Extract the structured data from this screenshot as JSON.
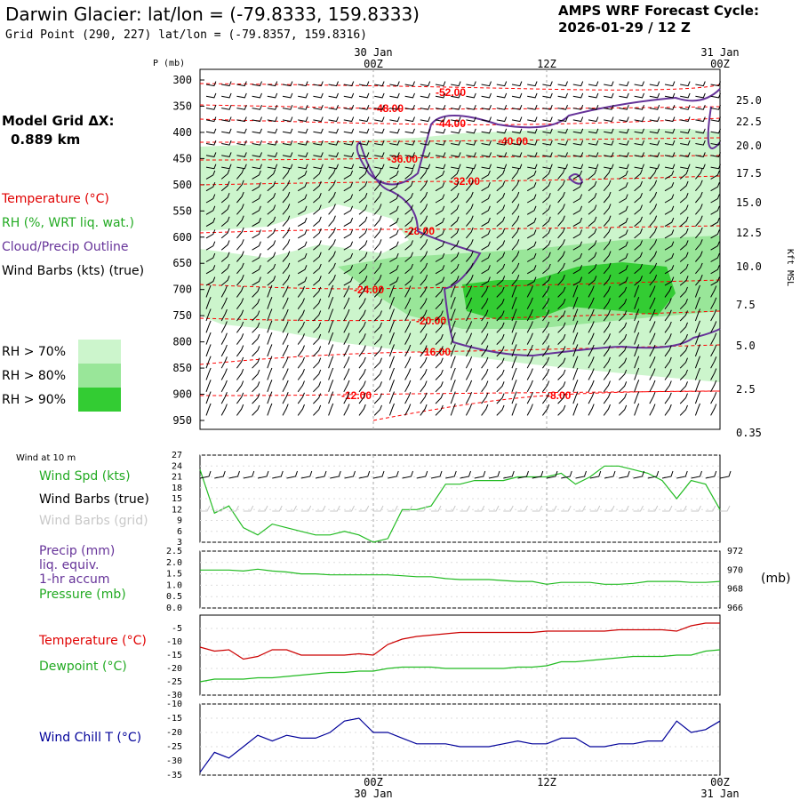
{
  "header": {
    "title": "Darwin Glacier:  lat/lon = (-79.8333, 159.8333)",
    "subtitle": "Grid Point (290, 227) lat/lon = (-79.8357, 159.8316)",
    "cycle_line1": "AMPS WRF Forecast Cycle:",
    "cycle_line2": "2026-01-29 / 12  Z"
  },
  "left_panel": {
    "model_grid_line1": "Model Grid ΔX:",
    "model_grid_line2": "0.889 km",
    "temperature_label": "Temperature (°C)",
    "rh_label": "RH (%, WRT liq. wat.)",
    "cloud_label": "Cloud/Precip Outline",
    "wind_label": "Wind Barbs (kts) (true)",
    "rh_legend": [
      "RH > 70%",
      "RH > 80%",
      "RH > 90%"
    ]
  },
  "colors": {
    "temperature": "#ff0000",
    "rh70": "#ccf5cc",
    "rh80": "#99e699",
    "rh90": "#33cc33",
    "cloud_outline": "#663399",
    "green_series": "#22bb22",
    "grid_gray": "#aaaaaa",
    "windchill": "#000099"
  },
  "chart_data": [
    {
      "type": "heatmap",
      "name": "vertical cross-section",
      "y_title": "P (mb)",
      "right_axis_title": "Kft MSL",
      "x_tick_labels": [
        "00Z",
        "12Z",
        "00Z"
      ],
      "x_date_labels": [
        "30 Jan",
        "",
        "31 Jan"
      ],
      "pressure_levels": [
        300,
        350,
        400,
        450,
        500,
        550,
        600,
        650,
        700,
        750,
        800,
        850,
        900,
        950
      ],
      "height_kft": [
        "25.0",
        "22.5",
        "20.0",
        "17.5",
        "15.0",
        "12.5",
        "10.0",
        "7.5",
        "5.0",
        "2.5",
        "0.35"
      ],
      "temperature_contour_labels": [
        "-52.00",
        "-48.00",
        "-44.00",
        "-40.00",
        "-36.00",
        "-32.00",
        "-28.00",
        "-24.00",
        "-20.00",
        "-16.00",
        "-12.00",
        "-8.00"
      ]
    },
    {
      "type": "line",
      "name": "10 m wind",
      "panel_title": "Wind at 10 m",
      "labels": [
        "Wind Spd (kts)",
        "Wind Barbs (true)",
        "Wind Barbs (grid)"
      ],
      "ylim": [
        3,
        27
      ],
      "yticks": [
        3,
        6,
        9,
        12,
        15,
        18,
        21,
        24,
        27
      ],
      "x": [
        -12,
        -11,
        -10,
        -9,
        -8,
        -7,
        -6,
        -5,
        -4,
        -3,
        -2,
        -1,
        0,
        1,
        2,
        3,
        4,
        5,
        6,
        7,
        8,
        9,
        10,
        11,
        12,
        13,
        14,
        15,
        16,
        17,
        18,
        19,
        20,
        21,
        22,
        23,
        24
      ],
      "values": [
        23,
        11,
        13,
        7,
        5,
        8,
        7,
        6,
        5,
        5,
        6,
        5,
        3,
        4,
        12,
        12,
        13,
        19,
        19,
        20,
        20,
        20,
        21,
        21,
        21,
        22,
        19,
        21,
        24,
        24,
        23,
        22,
        20,
        15,
        20,
        19,
        12
      ]
    },
    {
      "type": "line",
      "name": "precip and pressure",
      "labels": [
        "Precip (mm)",
        "liq. equiv.",
        "1-hr accum",
        "Pressure (mb)"
      ],
      "left_ylim": [
        0.0,
        2.5
      ],
      "left_yticks": [
        "0.0",
        "0.5",
        "1.0",
        "1.5",
        "2.0",
        "2.5"
      ],
      "right_ylim": [
        966,
        972
      ],
      "right_yticks": [
        966,
        968,
        970,
        972
      ],
      "right_unit": "(mb)",
      "x": [
        -12,
        -11,
        -10,
        -9,
        -8,
        -7,
        -6,
        -5,
        -4,
        -3,
        -2,
        -1,
        0,
        1,
        2,
        3,
        4,
        5,
        6,
        7,
        8,
        9,
        10,
        11,
        12,
        13,
        14,
        15,
        16,
        17,
        18,
        19,
        20,
        21,
        22,
        23,
        24
      ],
      "pressure": [
        970.0,
        970.0,
        970.0,
        969.9,
        970.1,
        969.9,
        969.8,
        969.6,
        969.6,
        969.5,
        969.5,
        969.5,
        969.5,
        969.5,
        969.4,
        969.3,
        969.3,
        969.1,
        969.0,
        969.0,
        969.0,
        968.9,
        968.8,
        968.8,
        968.5,
        968.7,
        968.7,
        968.7,
        968.5,
        968.5,
        968.6,
        968.8,
        968.8,
        968.8,
        968.7,
        968.7,
        968.8
      ],
      "precip": [
        0,
        0,
        0,
        0,
        0,
        0,
        0,
        0,
        0,
        0,
        0,
        0,
        0,
        0,
        0,
        0,
        0,
        0,
        0,
        0,
        0,
        0,
        0,
        0,
        0,
        0,
        0,
        0,
        0,
        0,
        0,
        0,
        0,
        0,
        0,
        0,
        0
      ]
    },
    {
      "type": "line",
      "name": "temperature and dewpoint",
      "labels": [
        "Temperature (°C)",
        "Dewpoint (°C)"
      ],
      "ylim": [
        -30,
        0
      ],
      "yticks": [
        -30,
        -25,
        -20,
        -15,
        -10,
        -5
      ],
      "x": [
        -12,
        -11,
        -10,
        -9,
        -8,
        -7,
        -6,
        -5,
        -4,
        -3,
        -2,
        -1,
        0,
        1,
        2,
        3,
        4,
        5,
        6,
        7,
        8,
        9,
        10,
        11,
        12,
        13,
        14,
        15,
        16,
        17,
        18,
        19,
        20,
        21,
        22,
        23,
        24
      ],
      "series": [
        {
          "name": "Temperature (°C)",
          "values": [
            -12,
            -13.5,
            -13,
            -16.5,
            -15.5,
            -13,
            -13,
            -15,
            -15,
            -15,
            -15,
            -14.5,
            -15,
            -11,
            -9,
            -8,
            -7.5,
            -7,
            -6.5,
            -6.5,
            -6.5,
            -6.5,
            -6.5,
            -6.5,
            -6,
            -6,
            -6,
            -6,
            -6,
            -5.5,
            -5.5,
            -5.5,
            -5.5,
            -6,
            -4,
            -3,
            -3
          ]
        },
        {
          "name": "Dewpoint (°C)",
          "values": [
            -25,
            -24,
            -24,
            -24,
            -23.5,
            -23.5,
            -23,
            -22.5,
            -22,
            -21.5,
            -21.5,
            -21,
            -21,
            -20,
            -19.5,
            -19.5,
            -19.5,
            -20,
            -20,
            -20,
            -20,
            -20,
            -19.5,
            -19.5,
            -19,
            -17.5,
            -17.5,
            -17,
            -16.5,
            -16,
            -15.5,
            -15.5,
            -15.5,
            -15,
            -15,
            -13.5,
            -13
          ]
        }
      ]
    },
    {
      "type": "line",
      "name": "wind chill",
      "labels": [
        "Wind Chill T (°C)"
      ],
      "ylim": [
        -35,
        -10
      ],
      "yticks": [
        -35,
        -30,
        -25,
        -20,
        -15,
        -10
      ],
      "x": [
        -12,
        -11,
        -10,
        -9,
        -8,
        -7,
        -6,
        -5,
        -4,
        -3,
        -2,
        -1,
        0,
        1,
        2,
        3,
        4,
        5,
        6,
        7,
        8,
        9,
        10,
        11,
        12,
        13,
        14,
        15,
        16,
        17,
        18,
        19,
        20,
        21,
        22,
        23,
        24
      ],
      "values": [
        -34,
        -27,
        -29,
        -25,
        -21,
        -23,
        -21,
        -22,
        -22,
        -20,
        -16,
        -15,
        -20,
        -20,
        -22,
        -24,
        -24,
        -24,
        -25,
        -25,
        -25,
        -24,
        -23,
        -24,
        -24,
        -22,
        -22,
        -25,
        -25,
        -24,
        -24,
        -23,
        -23,
        -16,
        -20,
        -19,
        -16
      ],
      "x_tick_labels": [
        "00Z",
        "12Z",
        "00Z"
      ],
      "x_date_labels": [
        "30 Jan",
        "",
        "31 Jan"
      ]
    }
  ]
}
